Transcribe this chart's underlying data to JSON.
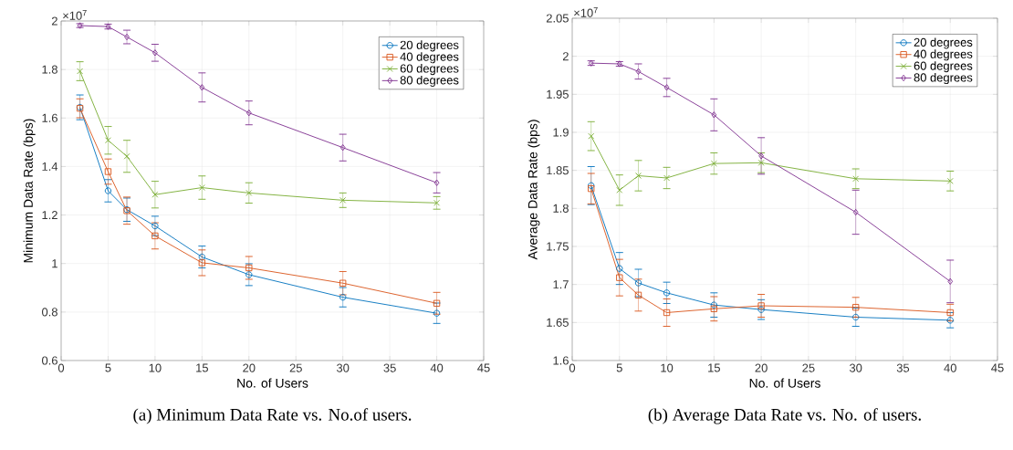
{
  "chart_data": [
    {
      "type": "line",
      "xlabel": "No. of Users",
      "ylabel": "Minimum Data Rate (bps)",
      "x": [
        2,
        5,
        7,
        10,
        15,
        20,
        30,
        40
      ],
      "xlim": [
        0,
        45
      ],
      "xticks": [
        0,
        5,
        10,
        15,
        20,
        25,
        30,
        35,
        40,
        45
      ],
      "ylim": [
        0.6,
        2
      ],
      "yticks": [
        0.6,
        0.8,
        1,
        1.2,
        1.4,
        1.6,
        1.8,
        2
      ],
      "grid": true,
      "legend": "top right",
      "annotations": [
        "×10$^{7}$",
        "(a)  Minimum Data Rate vs. No.of users."
      ],
      "series": [
        {
          "name": "20 degrees",
          "color": "#0072bd",
          "marker": "circle",
          "values": [
            1.644,
            1.3,
            1.222,
            1.155,
            1.027,
            0.954,
            0.861,
            0.795
          ],
          "errors": [
            0.051,
            0.046,
            0.048,
            0.04,
            0.045,
            0.045,
            0.04,
            0.042
          ]
        },
        {
          "name": "40 degrees",
          "color": "#d95319",
          "marker": "square",
          "values": [
            1.64,
            1.379,
            1.218,
            1.114,
            1.003,
            0.982,
            0.919,
            0.836
          ],
          "errors": [
            0.039,
            0.052,
            0.056,
            0.054,
            0.053,
            0.047,
            0.048,
            0.045
          ]
        },
        {
          "name": "60 degrees",
          "color": "#77ac30",
          "marker": "cross",
          "values": [
            1.793,
            1.508,
            1.442,
            1.284,
            1.313,
            1.291,
            1.261,
            1.25
          ],
          "errors": [
            0.039,
            0.057,
            0.066,
            0.055,
            0.048,
            0.042,
            0.03,
            0.026
          ]
        },
        {
          "name": "80 degrees",
          "color": "#7e2f8e",
          "marker": "diamond",
          "values": [
            1.981,
            1.977,
            1.934,
            1.869,
            1.726,
            1.621,
            1.478,
            1.333
          ],
          "errors": [
            0.008,
            0.01,
            0.028,
            0.035,
            0.06,
            0.049,
            0.055,
            0.042
          ]
        }
      ]
    },
    {
      "type": "line",
      "xlabel": "No. of Users",
      "ylabel": "Average Data Rate (bps)",
      "x": [
        2,
        5,
        7,
        10,
        15,
        20,
        30,
        40
      ],
      "xlim": [
        0,
        45
      ],
      "xticks": [
        0,
        5,
        10,
        15,
        20,
        25,
        30,
        35,
        40,
        45
      ],
      "ylim": [
        1.6,
        2.05
      ],
      "yticks": [
        1.6,
        1.65,
        1.7,
        1.75,
        1.8,
        1.85,
        1.9,
        1.95,
        2,
        2.05
      ],
      "grid": true,
      "legend": "top right",
      "annotations": [
        "×10$^{7}$",
        "(b)  Average Data Rate vs. No. of users."
      ],
      "series": [
        {
          "name": "20 degrees",
          "color": "#0072bd",
          "marker": "circle",
          "values": [
            1.83,
            1.721,
            1.702,
            1.689,
            1.673,
            1.667,
            1.657,
            1.653
          ],
          "errors": [
            0.025,
            0.021,
            0.018,
            0.014,
            0.016,
            0.013,
            0.012,
            0.01
          ]
        },
        {
          "name": "40 degrees",
          "color": "#d95319",
          "marker": "square",
          "values": [
            1.826,
            1.709,
            1.686,
            1.663,
            1.668,
            1.672,
            1.67,
            1.663
          ],
          "errors": [
            0.02,
            0.024,
            0.021,
            0.018,
            0.016,
            0.015,
            0.013,
            0.011
          ]
        },
        {
          "name": "60 degrees",
          "color": "#77ac30",
          "marker": "cross",
          "values": [
            1.895,
            1.824,
            1.843,
            1.84,
            1.859,
            1.86,
            1.839,
            1.836
          ],
          "errors": [
            0.019,
            0.02,
            0.02,
            0.014,
            0.014,
            0.013,
            0.013,
            0.013
          ]
        },
        {
          "name": "80 degrees",
          "color": "#7e2f8e",
          "marker": "diamond",
          "values": [
            1.991,
            1.99,
            1.98,
            1.959,
            1.923,
            1.869,
            1.795,
            1.704
          ],
          "errors": [
            0.003,
            0.003,
            0.01,
            0.012,
            0.021,
            0.024,
            0.029,
            0.028
          ]
        }
      ]
    }
  ]
}
